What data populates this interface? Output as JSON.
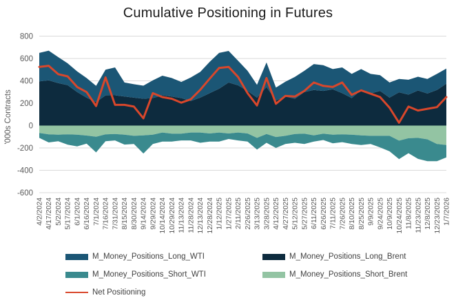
{
  "title": "Cumulative Positioning in Futures",
  "y_axis": {
    "title": "'000s Contracts",
    "ticks": [
      800,
      600,
      400,
      200,
      0,
      -200,
      -400,
      -600
    ],
    "min": -600,
    "max": 800
  },
  "colors": {
    "long_wti": "#1B5675",
    "long_brent": "#0D2B3E",
    "short_wti": "#3A8A8E",
    "short_brent": "#93C4A3",
    "net": "#D9472B",
    "gridline": "#D9D9D9",
    "axis_text": "#595959",
    "legend_text": "#404040",
    "title_text": "#1a1a1a"
  },
  "chart_data": {
    "type": "area",
    "stacked": true,
    "title": "Cumulative Positioning in Futures",
    "xlabel": "",
    "ylabel": "'000s Contracts",
    "ylim": [
      -600,
      800
    ],
    "grid": "horizontal",
    "legend_position": "bottom",
    "stack_note": "Brent series stack adjacent to the zero axis, WTI series stack outside them; net positioning drawn as line",
    "categories": [
      "4/2/2024",
      "4/17/2024",
      "5/2/2024",
      "5/17/2024",
      "6/1/2024",
      "6/16/2024",
      "7/1/2024",
      "7/16/2024",
      "7/31/2024",
      "8/15/2024",
      "8/30/2024",
      "9/14/2024",
      "9/29/2024",
      "10/14/2024",
      "10/29/2024",
      "11/13/2024",
      "11/28/2024",
      "12/13/2024",
      "12/28/2024",
      "1/12/2025",
      "1/27/2025",
      "2/11/2025",
      "2/26/2025",
      "3/13/2025",
      "3/28/2025",
      "4/12/2025",
      "4/27/2025",
      "5/12/2025",
      "5/27/2025",
      "6/11/2025",
      "6/26/2025",
      "7/11/2025",
      "7/26/2025",
      "8/10/2025",
      "8/25/2025",
      "9/9/2025",
      "9/24/2025",
      "10/9/2025",
      "10/24/2025",
      "11/8/2025",
      "11/23/2025",
      "12/8/2025",
      "12/23/2025",
      "1/7/2026"
    ],
    "series": [
      {
        "name": "M_Money_Positions_Long_WTI",
        "color": "#1B5675",
        "kind": "area",
        "values": [
          255,
          265,
          232,
          195,
          185,
          175,
          145,
          230,
          249,
          125,
          120,
          117,
          159,
          175,
          165,
          144,
          210,
          230,
          280,
          320,
          283,
          220,
          180,
          115,
          220,
          115,
          132,
          195,
          190,
          232,
          230,
          180,
          230,
          216,
          187,
          175,
          141,
          135,
          119,
          133,
          123,
          130,
          144,
          135
        ]
      },
      {
        "name": "M_Money_Positions_Long_Brent",
        "color": "#0D2B3E",
        "kind": "area",
        "values": [
          395,
          405,
          380,
          362,
          300,
          250,
          210,
          270,
          271,
          260,
          250,
          240,
          246,
          271,
          260,
          246,
          220,
          250,
          290,
          330,
          385,
          360,
          310,
          250,
          345,
          225,
          260,
          240,
          300,
          318,
          310,
          325,
          290,
          246,
          318,
          287,
          310,
          250,
          298,
          277,
          314,
          287,
          318,
          375
        ]
      },
      {
        "name": "M_Money_Positions_Short_WTI",
        "color": "#3A8A8E",
        "kind": "area",
        "values": [
          -44,
          -72,
          -58,
          -92,
          -104,
          -72,
          -140,
          -61,
          -57,
          -88,
          -72,
          -162,
          -82,
          -81,
          -71,
          -61,
          -71,
          -92,
          -72,
          -81,
          -49,
          -71,
          -72,
          -105,
          -78,
          -98,
          -72,
          -79,
          -92,
          -55,
          -57,
          -76,
          -70,
          -82,
          -86,
          -72,
          -103,
          -138,
          -165,
          -134,
          -188,
          -196,
          -155,
          -111
        ]
      },
      {
        "name": "M_Money_Positions_Short_Brent",
        "color": "#93C4A3",
        "kind": "area",
        "values": [
          -66,
          -79,
          -82,
          -79,
          -82,
          -89,
          -100,
          -79,
          -76,
          -82,
          -92,
          -88,
          -82,
          -62,
          -72,
          -72,
          -62,
          -62,
          -71,
          -62,
          -71,
          -62,
          -71,
          -110,
          -76,
          -102,
          -92,
          -75,
          -72,
          -88,
          -72,
          -82,
          -78,
          -82,
          -88,
          -92,
          -92,
          -92,
          -135,
          -113,
          -110,
          -123,
          -164,
          -174
        ]
      },
      {
        "name": "Net Positioning",
        "color": "#D9472B",
        "kind": "line",
        "values": [
          525,
          535,
          460,
          440,
          345,
          300,
          175,
          430,
          185,
          185,
          170,
          65,
          290,
          255,
          240,
          205,
          235,
          320,
          420,
          515,
          525,
          435,
          290,
          180,
          425,
          195,
          265,
          260,
          310,
          385,
          355,
          345,
          385,
          275,
          315,
          285,
          255,
          160,
          25,
          170,
          135,
          150,
          165,
          255
        ]
      }
    ]
  }
}
